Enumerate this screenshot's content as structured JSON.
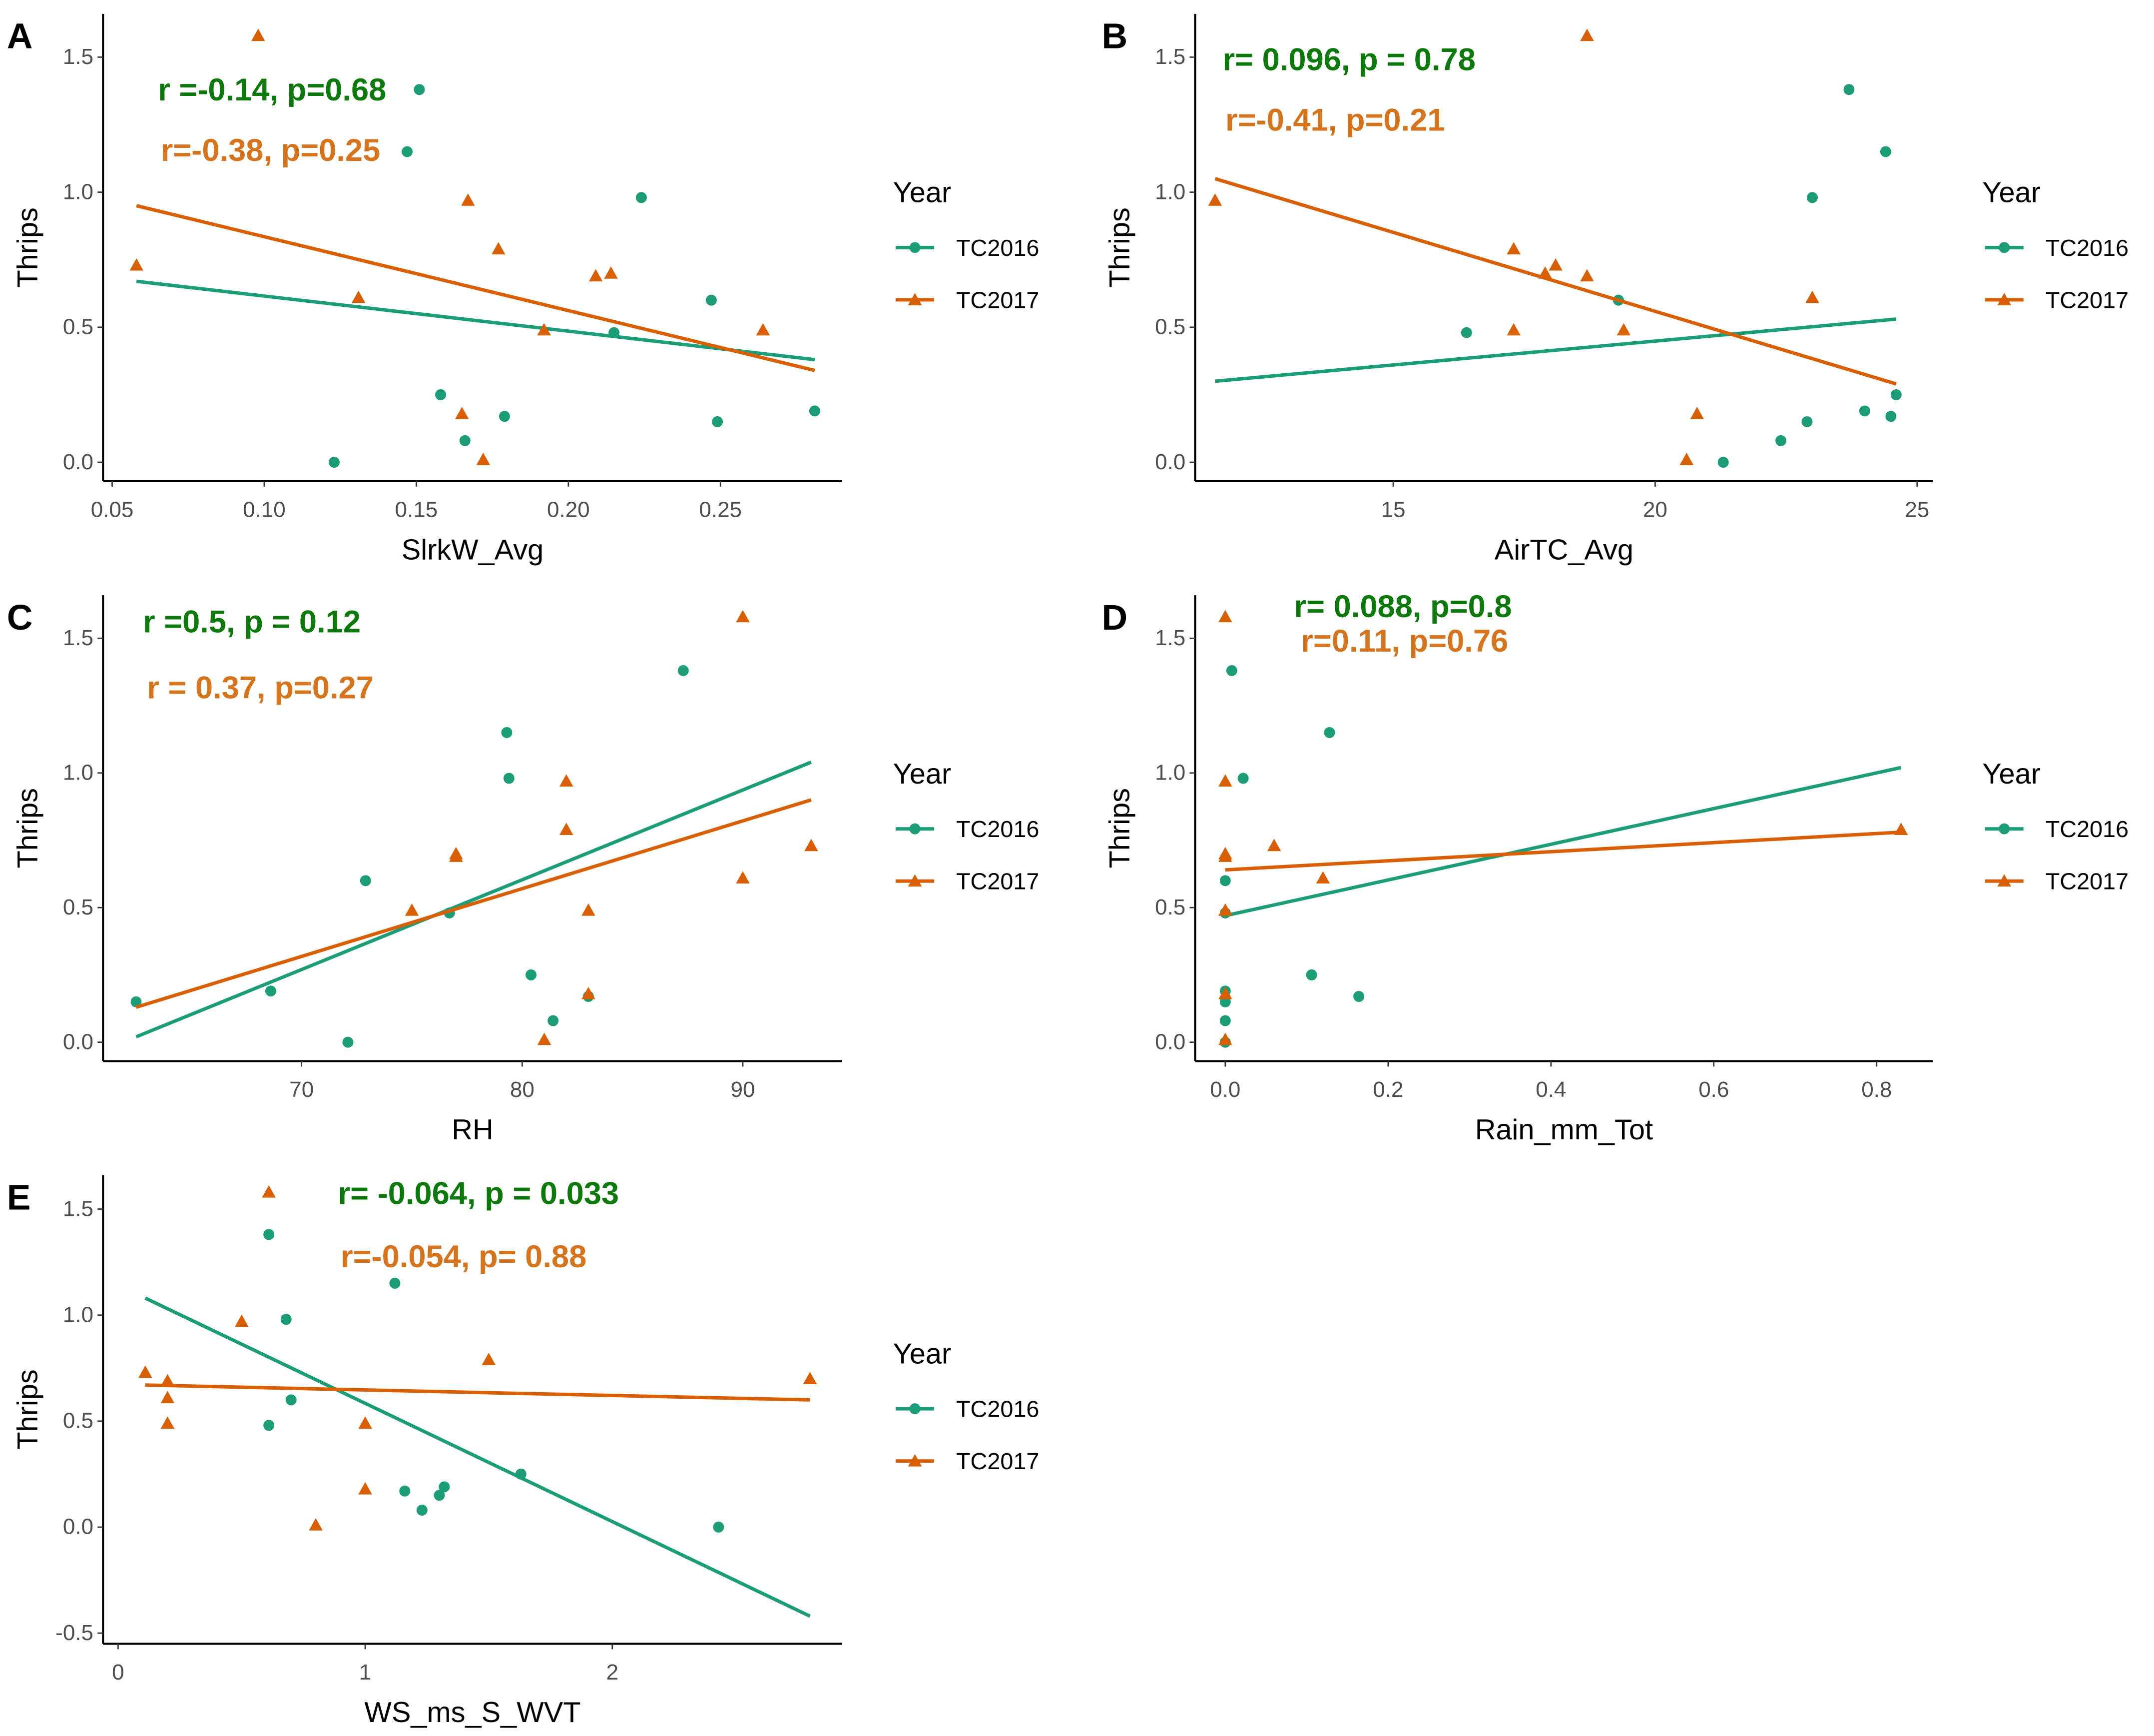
{
  "colors": {
    "TC2016": "#1b9e77",
    "TC2017": "#d95f02",
    "annot_TC2016": "#0b7a0b",
    "annot_TC2017": "#d7731a"
  },
  "legend": {
    "title": "Year",
    "items": [
      "TC2016",
      "TC2017"
    ]
  },
  "chart_data": [
    {
      "panel": "A",
      "type": "scatter",
      "xlabel": "SlrkW_Avg",
      "ylabel": "Thrips",
      "xlim": [
        0.047,
        0.29
      ],
      "ylim": [
        -0.07,
        1.66
      ],
      "xticks": [
        0.05,
        0.1,
        0.15,
        0.2,
        0.25
      ],
      "xtick_labels": [
        "0.05",
        "0.10",
        "0.15",
        "0.20",
        "0.25"
      ],
      "yticks": [
        0,
        0.5,
        1.0,
        1.5
      ],
      "ytick_labels": [
        "0.0",
        "0.5",
        "1.0",
        "1.5"
      ],
      "annotations": [
        "r =-0.14, p=0.68",
        "r=-0.38, p=0.25"
      ],
      "series": [
        {
          "name": "TC2016",
          "marker": "circle",
          "x": [
            0.151,
            0.147,
            0.224,
            0.247,
            0.215,
            0.158,
            0.179,
            0.249,
            0.281,
            0.166,
            0.123
          ],
          "y": [
            1.38,
            1.15,
            0.98,
            0.6,
            0.48,
            0.25,
            0.17,
            0.15,
            0.19,
            0.08,
            0.0
          ],
          "fit": [
            [
              0.058,
              0.67
            ],
            [
              0.281,
              0.38
            ]
          ]
        },
        {
          "name": "TC2017",
          "marker": "triangle",
          "x": [
            0.098,
            0.167,
            0.177,
            0.058,
            0.214,
            0.209,
            0.131,
            0.192,
            0.264,
            0.165,
            0.172
          ],
          "y": [
            1.58,
            0.97,
            0.79,
            0.73,
            0.7,
            0.69,
            0.61,
            0.49,
            0.49,
            0.18,
            0.01
          ],
          "fit": [
            [
              0.058,
              0.95
            ],
            [
              0.281,
              0.34
            ]
          ]
        }
      ]
    },
    {
      "panel": "B",
      "type": "scatter",
      "xlabel": "AirTC_Avg",
      "ylabel": "Thrips",
      "xlim": [
        11.22,
        25.3
      ],
      "ylim": [
        -0.07,
        1.66
      ],
      "xticks": [
        15,
        20,
        25
      ],
      "xtick_labels": [
        "15",
        "20",
        "25"
      ],
      "yticks": [
        0,
        0.5,
        1.0,
        1.5
      ],
      "ytick_labels": [
        "0.0",
        "0.5",
        "1.0",
        "1.5"
      ],
      "annotations": [
        "r= 0.096, p = 0.78",
        "r=-0.41, p=0.21"
      ],
      "series": [
        {
          "name": "TC2016",
          "marker": "circle",
          "x": [
            23.7,
            24.4,
            23.0,
            19.3,
            16.4,
            24.6,
            24.0,
            24.5,
            22.9,
            22.4,
            21.3
          ],
          "y": [
            1.38,
            1.15,
            0.98,
            0.6,
            0.48,
            0.25,
            0.19,
            0.17,
            0.15,
            0.08,
            0.0
          ],
          "fit": [
            [
              11.6,
              0.3
            ],
            [
              24.6,
              0.53
            ]
          ]
        },
        {
          "name": "TC2017",
          "marker": "triangle",
          "x": [
            18.7,
            11.6,
            17.3,
            18.1,
            17.9,
            18.7,
            23.0,
            17.3,
            19.4,
            20.8,
            20.6
          ],
          "y": [
            1.58,
            0.97,
            0.79,
            0.73,
            0.7,
            0.69,
            0.61,
            0.49,
            0.49,
            0.18,
            0.01
          ],
          "fit": [
            [
              11.6,
              1.05
            ],
            [
              24.6,
              0.29
            ]
          ]
        }
      ]
    },
    {
      "panel": "C",
      "type": "scatter",
      "xlabel": "RH",
      "ylabel": "Thrips",
      "xlim": [
        61.0,
        94.5
      ],
      "ylim": [
        -0.07,
        1.66
      ],
      "xticks": [
        70,
        80,
        90
      ],
      "xtick_labels": [
        "70",
        "80",
        "90"
      ],
      "yticks": [
        0,
        0.5,
        1.0,
        1.5
      ],
      "ytick_labels": [
        "0.0",
        "0.5",
        "1.0",
        "1.5"
      ],
      "annotations": [
        "r =0.5, p = 0.12",
        "r = 0.37, p=0.27"
      ],
      "series": [
        {
          "name": "TC2016",
          "marker": "circle",
          "x": [
            87.3,
            79.3,
            79.4,
            72.9,
            76.7,
            80.4,
            68.6,
            83.0,
            62.5,
            81.4,
            72.1
          ],
          "y": [
            1.38,
            1.15,
            0.98,
            0.6,
            0.48,
            0.25,
            0.19,
            0.17,
            0.15,
            0.08,
            0.0
          ],
          "fit": [
            [
              62.5,
              0.02
            ],
            [
              93.1,
              1.04
            ]
          ]
        },
        {
          "name": "TC2017",
          "marker": "triangle",
          "x": [
            90.0,
            82.0,
            82.0,
            93.1,
            77.0,
            77.0,
            90.0,
            75.0,
            83.0,
            83.0,
            81.0
          ],
          "y": [
            1.58,
            0.97,
            0.79,
            0.73,
            0.7,
            0.69,
            0.61,
            0.49,
            0.49,
            0.18,
            0.01
          ],
          "fit": [
            [
              62.5,
              0.13
            ],
            [
              93.1,
              0.9
            ]
          ]
        }
      ]
    },
    {
      "panel": "D",
      "type": "scatter",
      "xlabel": "Rain_mm_Tot",
      "ylabel": "Thrips",
      "xlim": [
        -0.037,
        0.869
      ],
      "ylim": [
        -0.07,
        1.66
      ],
      "xticks": [
        0,
        0.2,
        0.4,
        0.6,
        0.8
      ],
      "xtick_labels": [
        "0.0",
        "0.2",
        "0.4",
        "0.6",
        "0.8"
      ],
      "yticks": [
        0,
        0.5,
        1.0,
        1.5
      ],
      "ytick_labels": [
        "0.0",
        "0.5",
        "1.0",
        "1.5"
      ],
      "annotations": [
        "r= 0.088, p=0.8",
        "r=0.11, p=0.76"
      ],
      "series": [
        {
          "name": "TC2016",
          "marker": "circle",
          "x": [
            0.008,
            0.128,
            0.022,
            0.0,
            0.0,
            0.106,
            0.0,
            0.164,
            0.0,
            0.0,
            0.0
          ],
          "y": [
            1.38,
            1.15,
            0.98,
            0.6,
            0.48,
            0.25,
            0.19,
            0.17,
            0.15,
            0.08,
            0.0
          ],
          "fit": [
            [
              0.0,
              0.47
            ],
            [
              0.83,
              1.02
            ]
          ]
        },
        {
          "name": "TC2017",
          "marker": "triangle",
          "x": [
            0.0,
            0.0,
            0.83,
            0.06,
            0.0,
            0.0,
            0.12,
            0.0,
            0.0,
            0.0,
            0.0
          ],
          "y": [
            1.58,
            0.97,
            0.79,
            0.73,
            0.7,
            0.69,
            0.61,
            0.49,
            0.49,
            0.18,
            0.01
          ],
          "fit": [
            [
              0.0,
              0.64
            ],
            [
              0.83,
              0.78
            ]
          ]
        }
      ]
    },
    {
      "panel": "E",
      "type": "scatter",
      "xlabel": "WS_ms_S_WVT",
      "ylabel": "Thrips",
      "xlim": [
        -0.061,
        2.93
      ],
      "ylim": [
        -0.55,
        1.66
      ],
      "xticks": [
        0,
        1,
        2
      ],
      "xtick_labels": [
        "0",
        "1",
        "2"
      ],
      "yticks": [
        -0.5,
        0,
        0.5,
        1.0,
        1.5
      ],
      "ytick_labels": [
        "-0.5",
        "0.0",
        "0.5",
        "1.0",
        "1.5"
      ],
      "annotations": [
        "r= -0.064, p = 0.033",
        "r=-0.054, p= 0.88"
      ],
      "series": [
        {
          "name": "TC2016",
          "marker": "circle",
          "x": [
            0.61,
            1.12,
            0.68,
            0.7,
            0.61,
            1.63,
            1.32,
            1.16,
            1.3,
            1.23,
            2.43
          ],
          "y": [
            1.38,
            1.15,
            0.98,
            0.6,
            0.48,
            0.25,
            0.19,
            0.17,
            0.15,
            0.08,
            0.0
          ],
          "fit": [
            [
              0.11,
              1.08
            ],
            [
              2.8,
              -0.42
            ]
          ]
        },
        {
          "name": "TC2017",
          "marker": "triangle",
          "x": [
            0.61,
            0.5,
            1.5,
            0.11,
            2.8,
            0.2,
            0.2,
            0.2,
            1.0,
            1.0,
            0.8
          ],
          "y": [
            1.58,
            0.97,
            0.79,
            0.73,
            0.7,
            0.69,
            0.61,
            0.49,
            0.49,
            0.18,
            0.01
          ],
          "fit": [
            [
              0.11,
              0.67
            ],
            [
              2.8,
              0.6
            ]
          ]
        }
      ]
    }
  ]
}
